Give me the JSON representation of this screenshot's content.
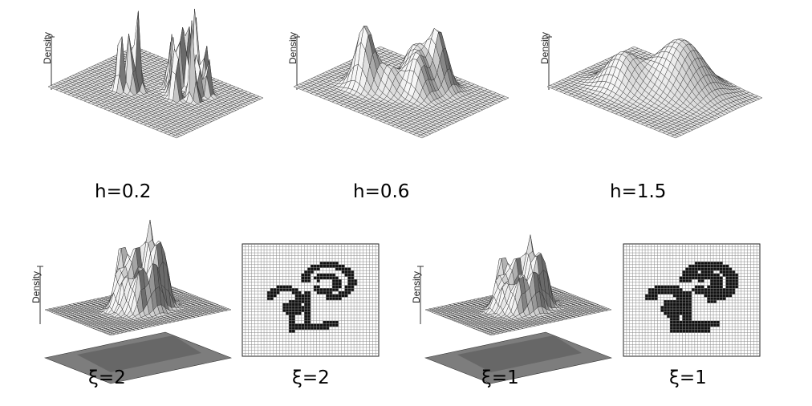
{
  "top_row": {
    "axis_label": "Density",
    "panels": [
      {
        "caption": "h=0.2"
      },
      {
        "caption": "h=0.6"
      },
      {
        "caption": "h=1.5"
      }
    ]
  },
  "bottom_row": {
    "axis_label": "Density",
    "panels": [
      {
        "caption": "ξ=2",
        "kind": "surface"
      },
      {
        "caption": "ξ=2",
        "kind": "binary-grid"
      },
      {
        "caption": "ξ=1",
        "kind": "surface"
      },
      {
        "caption": "ξ=1",
        "kind": "binary-grid"
      }
    ]
  },
  "colors": {
    "mesh_line": "#333333",
    "surface_light": "#f4f4f4",
    "surface_dark": "#6a6a6a",
    "grid_fill": "#111111"
  }
}
